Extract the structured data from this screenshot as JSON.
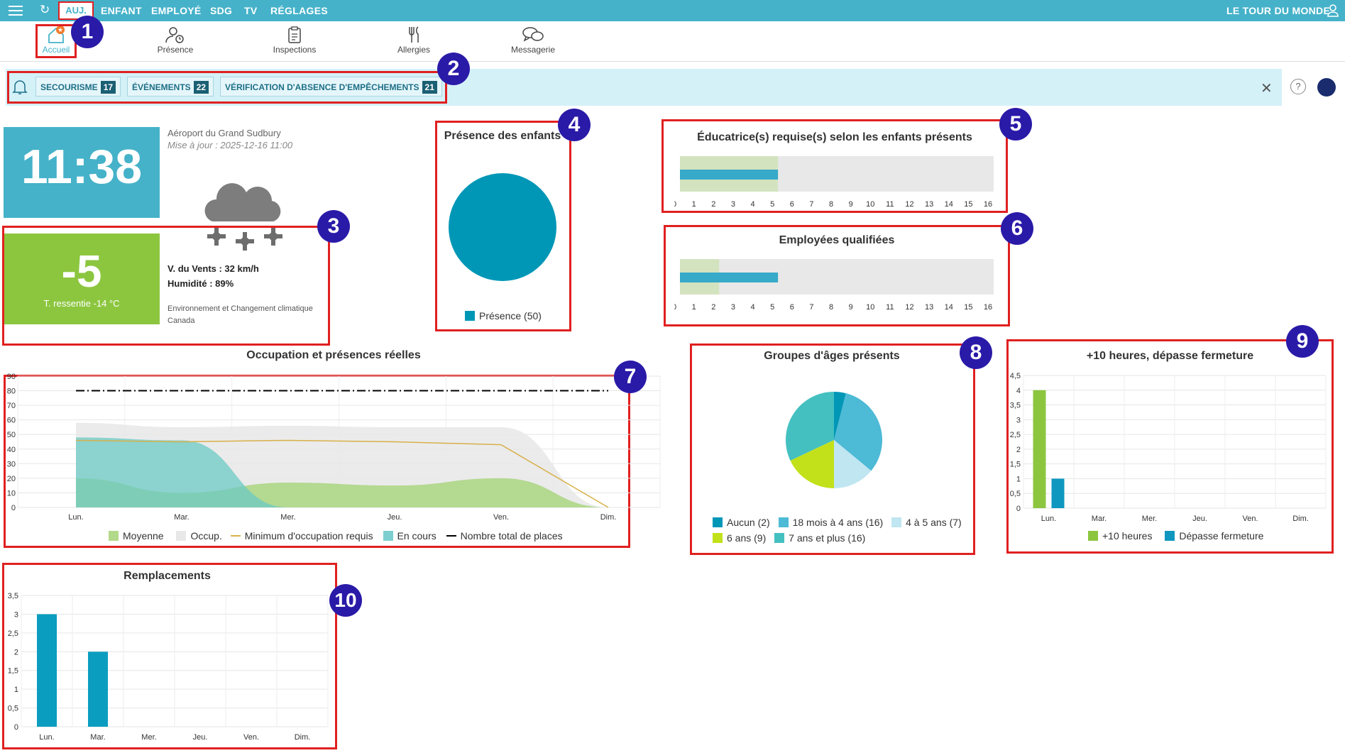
{
  "topnav": {
    "auj": "AUJ.",
    "enfant": "ENFANT",
    "employe": "EMPLOYÉ",
    "sdg": "SDG",
    "tv": "TV",
    "reglages": "RÉGLAGES",
    "right_title": "LE TOUR DU MONDE"
  },
  "subnav": {
    "accueil": "Accueil",
    "presence": "Présence",
    "inspections": "Inspections",
    "allergies": "Allergies",
    "messagerie": "Messagerie"
  },
  "alerts": [
    {
      "label": "SECOURISME",
      "count": "17"
    },
    {
      "label": "ÉVÉNEMENTS",
      "count": "22"
    },
    {
      "label": "VÉRIFICATION D'ABSENCE D'EMPÊCHEMENTS",
      "count": "21"
    }
  ],
  "weather": {
    "time": "11:38",
    "location": "Aéroport du Grand Sudbury",
    "updated": "Mise à jour : 2025-12-16 11:00",
    "temp": "-5",
    "feels": "T. ressentie -14 °C",
    "wind": "V. du Vents : 32 km/h",
    "humidity": "Humidité : 89%",
    "source": "Environnement et Changement climatique Canada"
  },
  "badges": [
    "1",
    "2",
    "3",
    "4",
    "5",
    "6",
    "7",
    "8",
    "9",
    "10"
  ],
  "colors": {
    "accent": "#45b2c9",
    "annotation_red": "#e02020",
    "badge": "#2a1aa8",
    "green": "#8cc63f"
  },
  "chart_data": [
    {
      "type": "pie",
      "title": "Présence des enfants",
      "categories": [
        "Présence"
      ],
      "values": [
        50
      ],
      "legend": [
        "Présence (50)"
      ]
    },
    {
      "type": "bar",
      "title": "Éducatrice(s) requise(s) selon les enfants présents",
      "x": [
        0,
        1,
        2,
        3,
        4,
        5,
        6,
        7,
        8,
        9,
        10,
        11,
        12,
        13,
        14,
        15,
        16
      ],
      "xlim": [
        0,
        16
      ],
      "range_highlight": 5,
      "value": 5
    },
    {
      "type": "bar",
      "title": "Employées qualifiées",
      "x": [
        0,
        1,
        2,
        3,
        4,
        5,
        6,
        7,
        8,
        9,
        10,
        11,
        12,
        13,
        14,
        15,
        16
      ],
      "xlim": [
        0,
        16
      ],
      "range_highlight": 2,
      "value": 5
    },
    {
      "type": "area",
      "title": "Occupation et présences réelles",
      "categories": [
        "Lun.",
        "Mar.",
        "Mer.",
        "Jeu.",
        "Ven.",
        "Dim."
      ],
      "ylim": [
        0,
        90
      ],
      "yticks": [
        0,
        10,
        20,
        30,
        40,
        50,
        60,
        70,
        80,
        90
      ],
      "series": [
        {
          "name": "Moyenne",
          "values": [
            20,
            10,
            17,
            15,
            20,
            0
          ]
        },
        {
          "name": "Occup.",
          "values": [
            58,
            55,
            56,
            55,
            55,
            0
          ]
        },
        {
          "name": "Minimum d'occupation requis",
          "values": [
            46,
            45,
            46,
            45,
            43,
            0
          ]
        },
        {
          "name": "En cours",
          "values": [
            48,
            46,
            0,
            0,
            0,
            0
          ]
        },
        {
          "name": "Nombre total de places",
          "values": [
            80,
            80,
            80,
            80,
            80,
            80
          ]
        }
      ]
    },
    {
      "type": "pie",
      "title": "Groupes d'âges présents",
      "categories": [
        "Aucun",
        "18 mois à 4 ans",
        "4 à 5 ans",
        "6 ans",
        "7 ans et plus"
      ],
      "values": [
        2,
        16,
        7,
        9,
        16
      ],
      "legend": [
        "Aucun (2)",
        "18 mois à 4 ans (16)",
        "4 à 5 ans (7)",
        "6 ans (9)",
        "7 ans et plus (16)"
      ]
    },
    {
      "type": "bar",
      "title": "+10 heures, dépasse fermeture",
      "categories": [
        "Lun.",
        "Mar.",
        "Mer.",
        "Jeu.",
        "Ven.",
        "Dim."
      ],
      "ylim": [
        0,
        4.5
      ],
      "yticks": [
        "0",
        "0,5",
        "1",
        "1,5",
        "2",
        "2,5",
        "3",
        "3,5",
        "4",
        "4,5"
      ],
      "series": [
        {
          "name": "+10 heures",
          "values": [
            4,
            0,
            0,
            0,
            0,
            0
          ]
        },
        {
          "name": "Dépasse fermeture",
          "values": [
            1,
            0,
            0,
            0,
            0,
            0
          ]
        }
      ]
    },
    {
      "type": "bar",
      "title": "Remplacements",
      "categories": [
        "Lun.",
        "Mar.",
        "Mer.",
        "Jeu.",
        "Ven.",
        "Dim."
      ],
      "ylim": [
        0,
        3.5
      ],
      "yticks": [
        "0",
        "0,5",
        "1",
        "1,5",
        "2",
        "2,5",
        "3",
        "3,5"
      ],
      "series": [
        {
          "values": [
            3,
            2,
            0,
            0,
            0,
            0
          ]
        }
      ]
    }
  ]
}
